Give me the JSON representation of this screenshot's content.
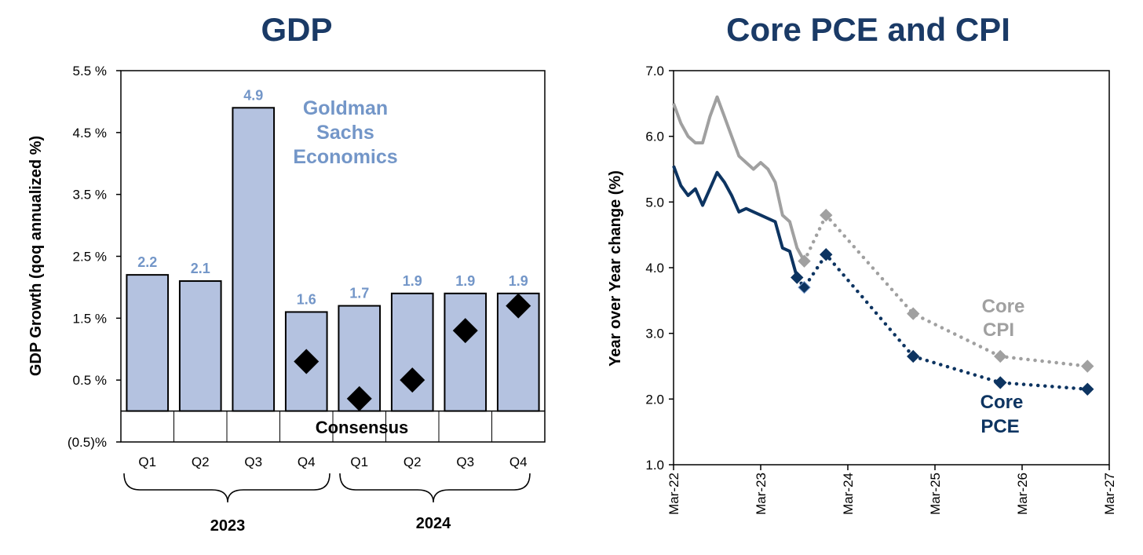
{
  "colors": {
    "title": "#1a3a66",
    "bar_fill": "#b4c2e0",
    "gs_label": "#7396c8",
    "core_cpi": "#a0a0a0",
    "core_pce": "#0d3461"
  },
  "chart_data": [
    {
      "type": "bar",
      "title": "GDP",
      "ylabel": "GDP Growth (qoq annualized %)",
      "yticks": [
        "(0.5)%",
        "0.5 %",
        "1.5 %",
        "2.5 %",
        "3.5 %",
        "4.5 %",
        "5.5 %"
      ],
      "ylim": [
        -0.5,
        5.5
      ],
      "categories": [
        "Q1",
        "Q2",
        "Q3",
        "Q4",
        "Q1",
        "Q2",
        "Q3",
        "Q4"
      ],
      "groups": [
        {
          "label": "2023",
          "start": 0,
          "end": 3
        },
        {
          "label": "2024",
          "start": 4,
          "end": 7
        }
      ],
      "series": [
        {
          "name": "Goldman Sachs Economics",
          "values": [
            2.2,
            2.1,
            4.9,
            1.6,
            1.7,
            1.9,
            1.9,
            1.9
          ]
        },
        {
          "name": "Consensus",
          "values": [
            null,
            null,
            null,
            0.8,
            0.2,
            0.5,
            1.3,
            1.7
          ]
        }
      ],
      "data_labels": [
        "2.2",
        "2.1",
        "4.9",
        "1.6",
        "1.7",
        "1.9",
        "1.9",
        "1.9"
      ],
      "annotations": {
        "goldman": [
          "Goldman",
          "Sachs",
          "Economics"
        ],
        "consensus": "Consensus"
      }
    },
    {
      "type": "line",
      "title": "Core PCE and CPI",
      "ylabel": "Year over Year change (%)",
      "ylim": [
        1.0,
        7.0
      ],
      "yticks": [
        "1.0",
        "2.0",
        "3.0",
        "4.0",
        "5.0",
        "6.0",
        "7.0"
      ],
      "xticks": [
        "Mar-22",
        "Mar-23",
        "Mar-24",
        "Mar-25",
        "Mar-26",
        "Mar-27"
      ],
      "series": [
        {
          "name": "Core CPI",
          "label_lines": [
            "Core",
            "CPI"
          ],
          "actual": [
            [
              "Mar-22",
              6.5
            ],
            [
              "Apr-22",
              6.2
            ],
            [
              "May-22",
              6.0
            ],
            [
              "Jun-22",
              5.9
            ],
            [
              "Jul-22",
              5.9
            ],
            [
              "Aug-22",
              6.3
            ],
            [
              "Sep-22",
              6.6
            ],
            [
              "Oct-22",
              6.3
            ],
            [
              "Nov-22",
              6.0
            ],
            [
              "Dec-22",
              5.7
            ],
            [
              "Jan-23",
              5.6
            ],
            [
              "Feb-23",
              5.5
            ],
            [
              "Mar-23",
              5.6
            ],
            [
              "Apr-23",
              5.5
            ],
            [
              "May-23",
              5.3
            ],
            [
              "Jun-23",
              4.8
            ],
            [
              "Jul-23",
              4.7
            ],
            [
              "Aug-23",
              4.3
            ],
            [
              "Sep-23",
              4.1
            ]
          ],
          "forecast": [
            [
              "Sep-23",
              4.1
            ],
            [
              "Dec-23",
              4.8
            ],
            [
              "Dec-24",
              3.3
            ],
            [
              "Dec-25",
              2.65
            ],
            [
              "Dec-26",
              2.5
            ]
          ]
        },
        {
          "name": "Core PCE",
          "label_lines": [
            "Core",
            "PCE"
          ],
          "actual": [
            [
              "Mar-22",
              5.55
            ],
            [
              "Apr-22",
              5.25
            ],
            [
              "May-22",
              5.1
            ],
            [
              "Jun-22",
              5.2
            ],
            [
              "Jul-22",
              4.95
            ],
            [
              "Aug-22",
              5.2
            ],
            [
              "Sep-22",
              5.45
            ],
            [
              "Oct-22",
              5.3
            ],
            [
              "Nov-22",
              5.1
            ],
            [
              "Dec-22",
              4.85
            ],
            [
              "Jan-23",
              4.9
            ],
            [
              "Feb-23",
              4.85
            ],
            [
              "Mar-23",
              4.8
            ],
            [
              "Apr-23",
              4.75
            ],
            [
              "May-23",
              4.7
            ],
            [
              "Jun-23",
              4.3
            ],
            [
              "Jul-23",
              4.25
            ],
            [
              "Aug-23",
              3.85
            ]
          ],
          "forecast": [
            [
              "Aug-23",
              3.85
            ],
            [
              "Sep-23",
              3.7
            ],
            [
              "Dec-23",
              4.2
            ],
            [
              "Dec-24",
              2.65
            ],
            [
              "Dec-25",
              2.25
            ],
            [
              "Dec-26",
              2.15
            ]
          ]
        }
      ]
    }
  ]
}
